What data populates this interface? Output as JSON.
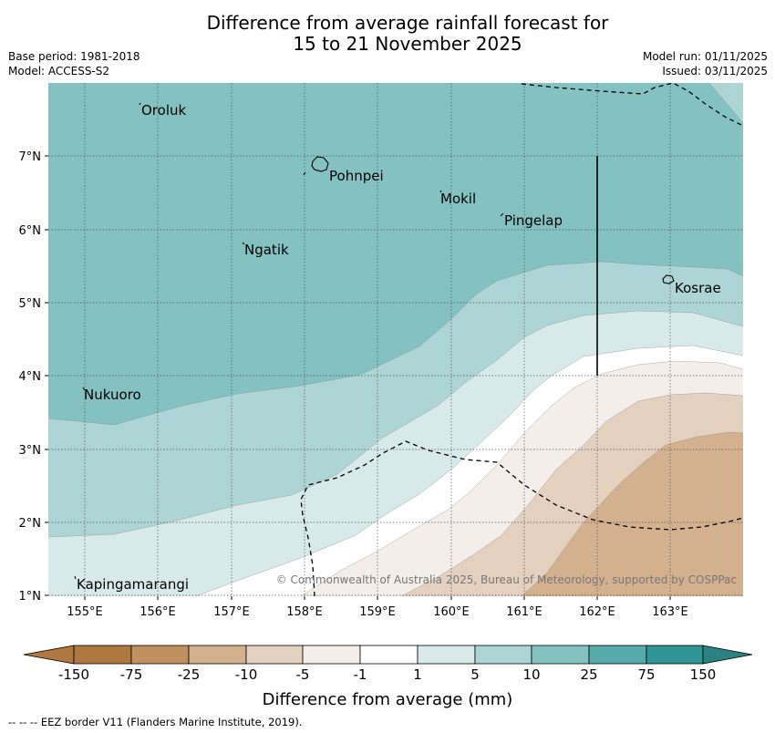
{
  "title": {
    "line1": "Difference from average rainfall forecast for",
    "line2": "15 to 21 November 2025"
  },
  "meta": {
    "base_period": "Base period: 1981-2018",
    "model": "Model: ACCESS-S2",
    "model_run": "Model run: 01/11/2025",
    "issued": "Issued: 03/11/2025"
  },
  "map": {
    "lon_ticks": [
      "155°E",
      "156°E",
      "157°E",
      "158°E",
      "159°E",
      "160°E",
      "161°E",
      "162°E",
      "163°E"
    ],
    "lat_ticks": [
      "1°N",
      "2°N",
      "3°N",
      "4°N",
      "5°N",
      "6°N",
      "7°N"
    ],
    "places": [
      "Oroluk",
      "Pohnpei",
      "Mokil",
      "Pingelap",
      "Ngatik",
      "Kosrae",
      "Nukuoro",
      "Kapingamarangi"
    ],
    "copyright": "© Commonwealth of Australia 2025, Bureau of Meteorology, supported by COSPPac"
  },
  "legend": {
    "ticks": [
      "-150",
      "-75",
      "-25",
      "-10",
      "-5",
      "-1",
      "1",
      "5",
      "10",
      "25",
      "75",
      "150"
    ],
    "colors": [
      "#ae7840",
      "#c0905f",
      "#d3b08e",
      "#e3d0be",
      "#f3eee9",
      "#ffffff",
      "#d7e9e8",
      "#add5d5",
      "#84c1c1",
      "#56aaaa",
      "#2f9595",
      "#2a8282"
    ],
    "label": "Difference from average (mm)"
  },
  "footer": "--  --  -- EEZ border V11 (Flanders Marine Institute, 2019)."
}
